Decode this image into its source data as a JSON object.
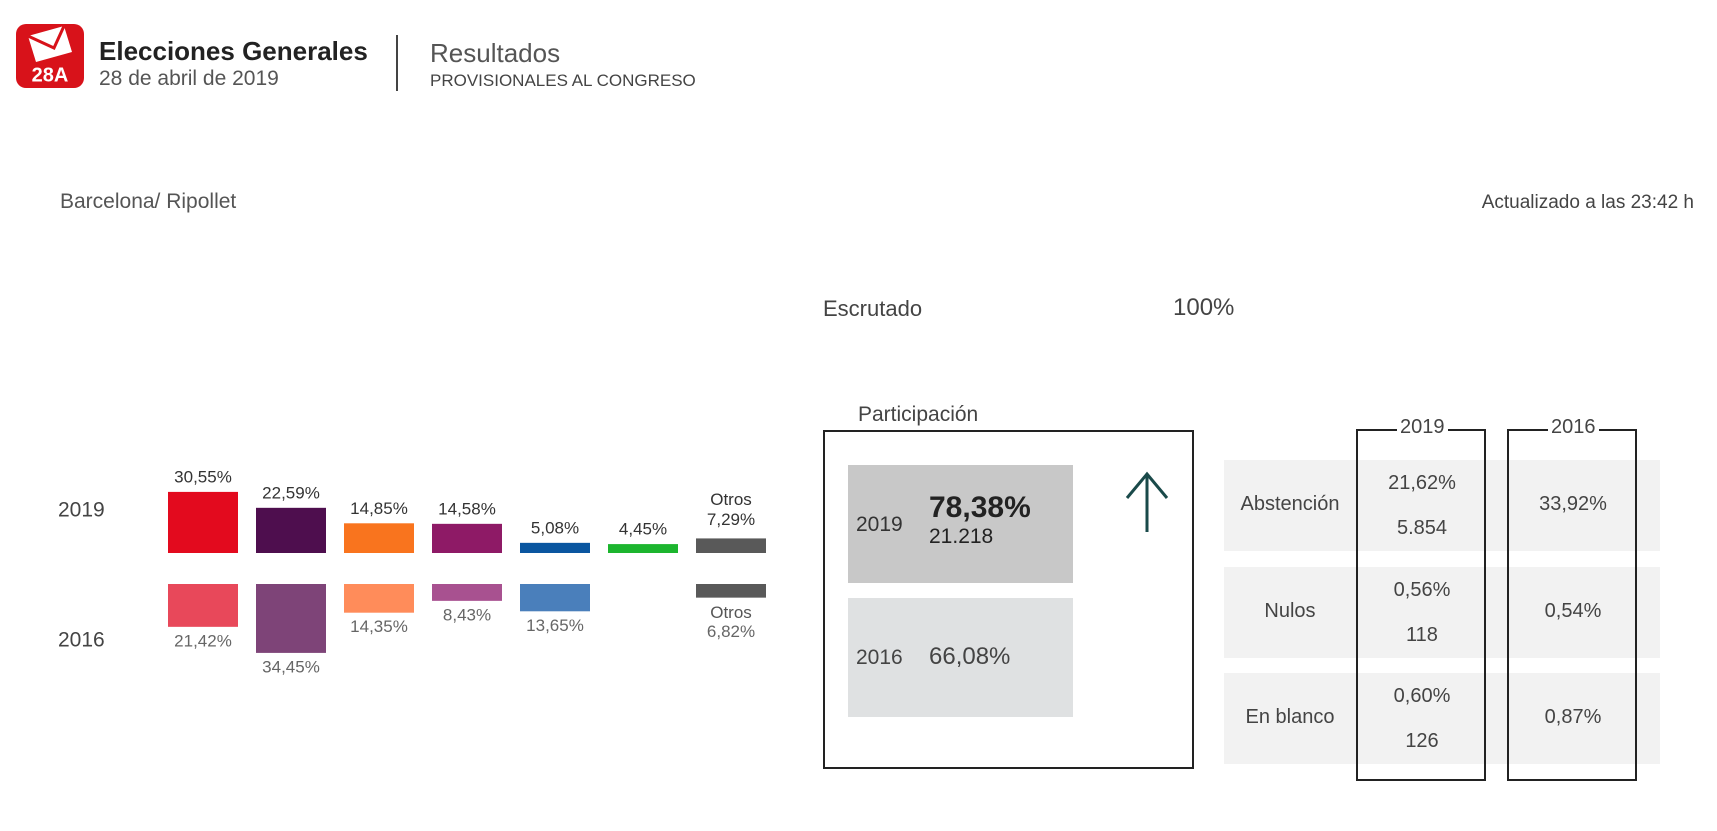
{
  "header": {
    "logo": "28A",
    "title": "Elecciones Generales",
    "date": "28 de abril de 2019",
    "section": "Resultados",
    "subsection": "PROVISIONALES AL CONGRESO"
  },
  "location": "Barcelona/ Ripollet",
  "updated": "Actualizado a las 23:42 h",
  "scrutiny": {
    "label": "Escrutado",
    "value": "100%"
  },
  "chart_data": {
    "type": "bar",
    "categories": [
      null,
      null,
      null,
      null,
      null,
      null,
      "Otros"
    ],
    "series": [
      {
        "name": "2019",
        "colors": [
          "#e30a1e",
          "#4e0e4e",
          "#f9741e",
          "#8e1a66",
          "#0a56a0",
          "#1cb52e",
          "#595959"
        ],
        "values": [
          30.55,
          22.59,
          14.85,
          14.58,
          5.08,
          4.45,
          7.29
        ],
        "value_labels": [
          "30,55%",
          "22,59%",
          "14,85%",
          "14,58%",
          "5,08%",
          "4,45%",
          "7,29%"
        ]
      },
      {
        "name": "2016",
        "colors": [
          "#e8485a",
          "#7e4478",
          "#ff8c5a",
          "#a85190",
          "#4a7fbb",
          null,
          "#595959"
        ],
        "values": [
          21.42,
          34.45,
          14.35,
          8.43,
          13.65,
          null,
          6.82
        ],
        "value_labels": [
          "21,42%",
          "34,45%",
          "14,35%",
          "8,43%",
          "13,65%",
          null,
          "6,82%"
        ]
      }
    ]
  },
  "participation": {
    "title": "Participación",
    "rows": [
      {
        "year": "2019",
        "percent": "78,38%",
        "count": "21.218"
      },
      {
        "year": "2016",
        "percent": "66,08%"
      }
    ]
  },
  "table": {
    "columns": [
      "2019",
      "2016"
    ],
    "rows": [
      [
        "Abstención",
        "21,62%",
        "5.854",
        "33,92%"
      ],
      [
        "Nulos",
        "0,56%",
        "118",
        "0,54%"
      ],
      [
        "En blanco",
        "0,60%",
        "126",
        "0,87%"
      ]
    ]
  }
}
